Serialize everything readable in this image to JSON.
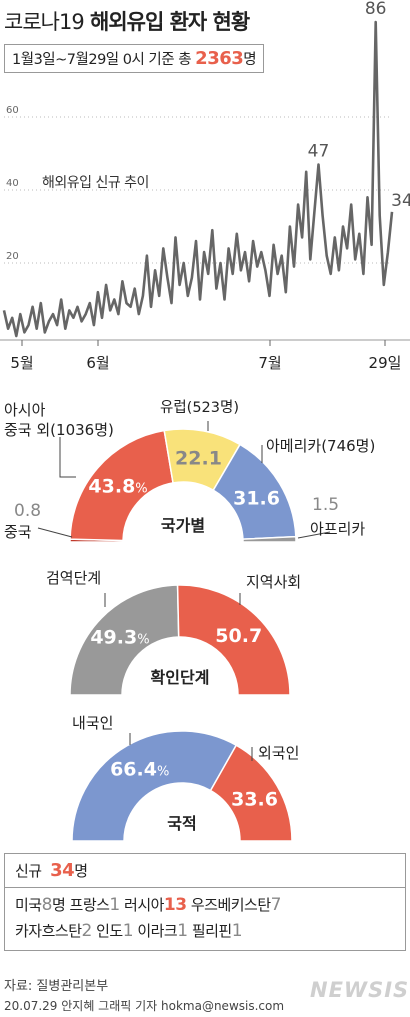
{
  "header": {
    "title_part1": "코로나19",
    "title_part2": " 해외유입 환자 현황",
    "subtitle_prefix": "1월3일~7월29일 0시 기준 총 ",
    "subtitle_total": "2363",
    "subtitle_suffix": "명"
  },
  "chart_data": [
    {
      "type": "line",
      "title": "해외유입 신규 추이",
      "y_ticks": [
        "20",
        "40",
        "60"
      ],
      "ylim": [
        0,
        100
      ],
      "x_labels": [
        "5월",
        "6월",
        "7월",
        "29일"
      ],
      "annotations": [
        "47",
        "86",
        "34"
      ],
      "grid": true,
      "values": [
        7,
        2,
        5,
        0,
        6,
        1,
        3,
        8,
        2,
        9,
        1,
        4,
        6,
        3,
        10,
        2,
        7,
        5,
        8,
        4,
        6,
        9,
        3,
        12,
        5,
        14,
        7,
        10,
        6,
        15,
        9,
        8,
        13,
        6,
        11,
        22,
        8,
        18,
        11,
        24,
        16,
        9,
        27,
        14,
        20,
        11,
        16,
        26,
        10,
        23,
        17,
        29,
        13,
        20,
        10,
        24,
        17,
        28,
        18,
        23,
        15,
        26,
        19,
        23,
        18,
        11,
        25,
        17,
        22,
        12,
        30,
        19,
        36,
        27,
        45,
        21,
        34,
        47,
        33,
        22,
        17,
        27,
        18,
        30,
        24,
        36,
        21,
        28,
        17,
        38,
        25,
        86,
        33,
        14,
        23,
        34
      ]
    },
    {
      "type": "pie",
      "title": "국가별",
      "slices": [
        {
          "name": "중국",
          "value": 0.8,
          "label": "0.8"
        },
        {
          "name": "아시아 중국 외(1036명)",
          "value": 43.8,
          "label": "43.8",
          "unit": "%"
        },
        {
          "name": "유럽(523명)",
          "value": 22.1,
          "label": "22.1"
        },
        {
          "name": "아메리카(746명)",
          "value": 31.6,
          "label": "31.6"
        },
        {
          "name": "아프리카",
          "value": 1.5,
          "label": "1.5"
        }
      ]
    },
    {
      "type": "pie",
      "title": "확인단계",
      "slices": [
        {
          "name": "검역단계",
          "value": 49.3,
          "label": "49.3",
          "unit": "%"
        },
        {
          "name": "지역사회",
          "value": 50.7,
          "label": "50.7"
        }
      ]
    },
    {
      "type": "pie",
      "title": "국적",
      "slices": [
        {
          "name": "내국인",
          "value": 66.4,
          "label": "66.4",
          "unit": "%"
        },
        {
          "name": "외국인",
          "value": 33.6,
          "label": "33.6"
        }
      ]
    }
  ],
  "donut1_labels": {
    "asia_line1": "아시아",
    "asia_line2": "중국 외(1036명)",
    "europe": "유럽(523명)",
    "america": "아메리카(746명)",
    "china": "중국",
    "africa": "아프리카"
  },
  "colors": {
    "red": "#e8604c",
    "yellow": "#f9e27a",
    "blue": "#7c97cf",
    "gray": "#999999",
    "line": "#666666",
    "grid": "#bbbbbb"
  },
  "new_cases": {
    "label": "신규",
    "total": "34",
    "unit": "명",
    "line1": [
      {
        "name": "미국",
        "count": "8",
        "unit": "명",
        "hl": false
      },
      {
        "name": "프랑스",
        "count": "1",
        "unit": "",
        "hl": false
      },
      {
        "name": "러시아",
        "count": "13",
        "unit": "",
        "hl": true
      },
      {
        "name": "우즈베키스탄",
        "count": "7",
        "unit": "",
        "hl": false
      }
    ],
    "line2": [
      {
        "name": "카자흐스탄",
        "count": "2",
        "unit": "",
        "hl": false
      },
      {
        "name": "인도",
        "count": "1",
        "unit": "",
        "hl": false
      },
      {
        "name": "이라크",
        "count": "1",
        "unit": "",
        "hl": false
      },
      {
        "name": "필리핀",
        "count": "1",
        "unit": "",
        "hl": false
      }
    ]
  },
  "footer": {
    "source": "자료: 질병관리본부",
    "credit": "20.07.29 안지혜 그래픽 기자 hokma@newsis.com",
    "watermark": "NEWSIS"
  }
}
